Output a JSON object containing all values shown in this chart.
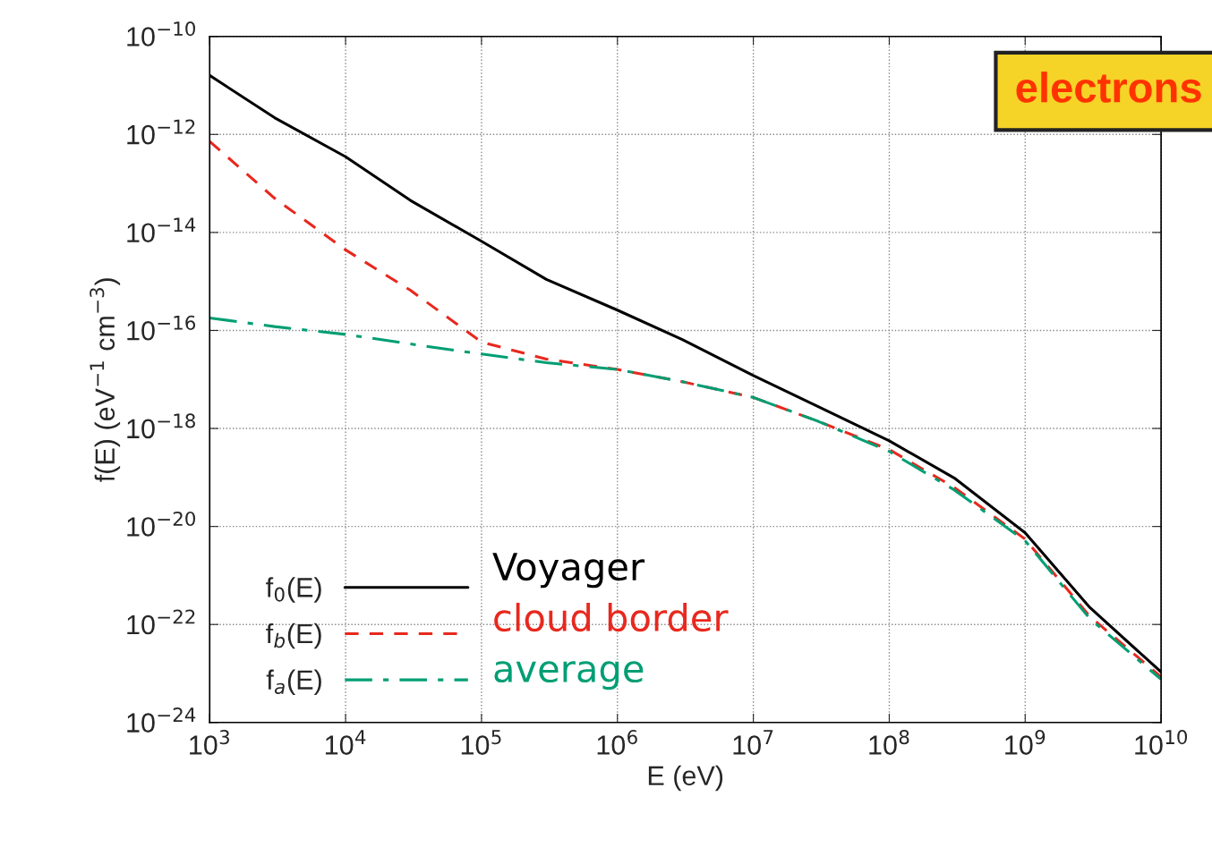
{
  "chart_data": {
    "type": "line",
    "xlabel": "E (eV)",
    "ylabel": "f(E) (eV$^{−1}$ cm$^{−3}$)",
    "log": "xy",
    "xlim": [
      1000.0,
      10000000000.0
    ],
    "ylim": [
      1e-24,
      1e-10
    ],
    "xticks": [
      {
        "value": 1000.0,
        "label": "10$^{3}$"
      },
      {
        "value": 10000.0,
        "label": "10$^{4}$"
      },
      {
        "value": 100000.0,
        "label": "10$^{5}$"
      },
      {
        "value": 1000000.0,
        "label": "10$^{6}$"
      },
      {
        "value": 10000000.0,
        "label": "10$^{7}$"
      },
      {
        "value": 100000000.0,
        "label": "10$^{8}$"
      },
      {
        "value": 1000000000.0,
        "label": "10$^{9}$"
      },
      {
        "value": 10000000000.0,
        "label": "10$^{10}$"
      }
    ],
    "yticks": [
      {
        "value": 1e-24,
        "label": "10$^{−24}$"
      },
      {
        "value": 1e-22,
        "label": "10$^{−22}$"
      },
      {
        "value": 1e-20,
        "label": "10$^{−20}$"
      },
      {
        "value": 1e-18,
        "label": "10$^{−18}$"
      },
      {
        "value": 1e-16,
        "label": "10$^{−16}$"
      },
      {
        "value": 1e-14,
        "label": "10$^{−14}$"
      },
      {
        "value": 1e-12,
        "label": "10$^{−12}$"
      },
      {
        "value": 1e-10,
        "label": "10$^{−10}$"
      }
    ],
    "grid": true,
    "legend": "bottom left",
    "marker": "none",
    "x": [
      1000.0,
      3000.0,
      10000.0,
      30000.0,
      100000.0,
      300000.0,
      1000000.0,
      3000000.0,
      10000000.0,
      30000000.0,
      100000000.0,
      300000000.0,
      1000000000.0,
      3000000000.0,
      10000000000.0
    ],
    "series": [
      {
        "name": "f$_{0}$(E)",
        "color": "#000000",
        "line_style": "solid",
        "values": [
          1.6e-11,
          2.2e-12,
          3.5e-13,
          4.5e-14,
          6.6e-15,
          1.1e-15,
          2.6e-16,
          6.5e-17,
          1.2e-17,
          2.8e-18,
          5.6e-19,
          9.8e-20,
          7.4e-21,
          2.2e-22,
          1.07e-23
        ]
      },
      {
        "name": "f$_{b}$(E)",
        "color": "#e8281e",
        "line_style": "dashed",
        "values": [
          7.2e-13,
          5e-14,
          4.4e-15,
          6.6e-16,
          5.8e-17,
          2.6e-17,
          1.6e-17,
          9e-18,
          4.3e-18,
          1.4e-18,
          3.7e-19,
          6.3e-20,
          5.5e-21,
          1.45e-22,
          8.5e-24
        ]
      },
      {
        "name": "f$_{a}$(E)",
        "color": "#009e73",
        "line_style": "dashdot",
        "values": [
          1.8e-16,
          1.2e-16,
          8.3e-17,
          5.3e-17,
          3.3e-17,
          2.2e-17,
          1.6e-17,
          9e-18,
          4.3e-18,
          1.4e-18,
          3.4e-19,
          5.6e-20,
          5.1e-21,
          1.3e-22,
          7.6e-24
        ]
      }
    ],
    "annotations": [
      "electrons",
      "Voyager",
      "cloud border",
      "average"
    ]
  }
}
